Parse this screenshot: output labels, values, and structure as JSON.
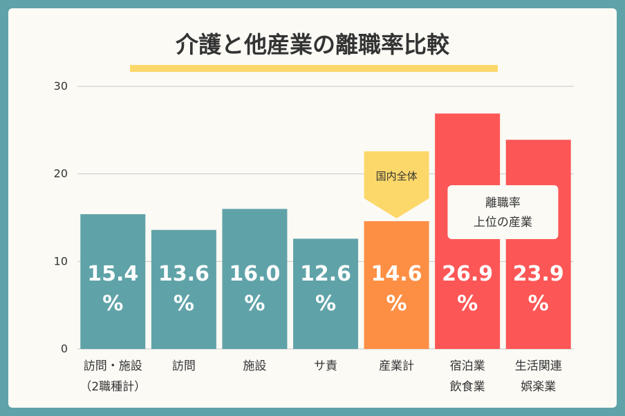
{
  "chart_data": {
    "type": "bar",
    "title": "介護と他産業の離職率比較",
    "categories": [
      "訪問・施設\n（2職種計）",
      "訪問",
      "施設",
      "サ責",
      "産業計",
      "宿泊業\n飲食業",
      "生活関連\n娯楽業"
    ],
    "values": [
      15.4,
      13.6,
      16.0,
      12.6,
      14.6,
      26.9,
      23.9
    ],
    "value_labels": [
      "15.4\n%",
      "13.6\n%",
      "16.0\n%",
      "12.6\n%",
      "14.6\n%",
      "26.9\n%",
      "23.9\n%"
    ],
    "colors": [
      "#5fa3a8",
      "#5fa3a8",
      "#5fa3a8",
      "#5fa3a8",
      "#fd8f45",
      "#fd5656",
      "#fd5656"
    ],
    "ylim": [
      0,
      30
    ],
    "yticks": [
      0,
      10,
      20,
      30
    ],
    "grid": true,
    "annotations": [
      "国内全体",
      "離職率\n上位の産業"
    ]
  }
}
